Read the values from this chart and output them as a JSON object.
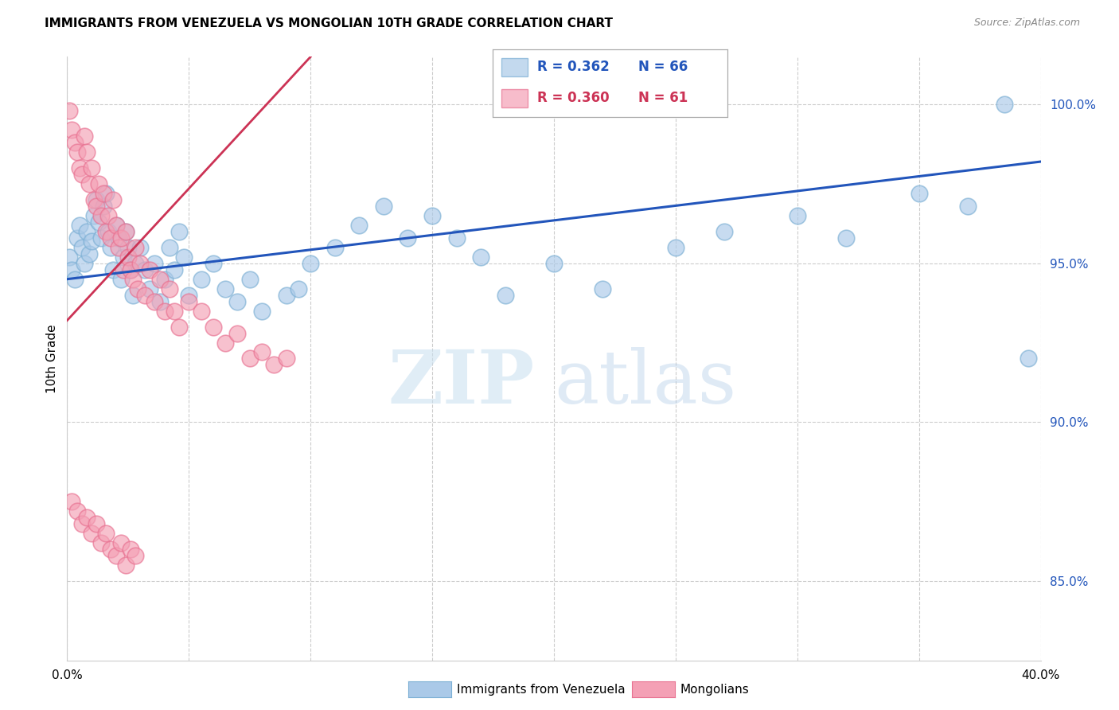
{
  "title": "IMMIGRANTS FROM VENEZUELA VS MONGOLIAN 10TH GRADE CORRELATION CHART",
  "source": "Source: ZipAtlas.com",
  "ylabel": "10th Grade",
  "yaxis_labels": [
    "85.0%",
    "90.0%",
    "95.0%",
    "100.0%"
  ],
  "yaxis_values": [
    0.85,
    0.9,
    0.95,
    1.0
  ],
  "xlim": [
    0.0,
    0.4
  ],
  "ylim": [
    0.825,
    1.015
  ],
  "legend_blue_r": "R = 0.362",
  "legend_blue_n": "N = 66",
  "legend_pink_r": "R = 0.360",
  "legend_pink_n": "N = 61",
  "legend_blue_label": "Immigrants from Venezuela",
  "legend_pink_label": "Mongolians",
  "blue_color": "#aac9e8",
  "pink_color": "#f4a0b5",
  "blue_edge_color": "#7bafd4",
  "pink_edge_color": "#e87090",
  "blue_line_color": "#2255bb",
  "pink_line_color": "#cc3355",
  "watermark_zip": "ZIP",
  "watermark_atlas": "atlas",
  "blue_line_x0": 0.0,
  "blue_line_y0": 0.945,
  "blue_line_x1": 0.4,
  "blue_line_y1": 0.982,
  "pink_line_x0": 0.0,
  "pink_line_y0": 0.932,
  "pink_line_x1": 0.1,
  "pink_line_y1": 1.015,
  "blue_scatter_x": [
    0.001,
    0.002,
    0.003,
    0.004,
    0.005,
    0.006,
    0.007,
    0.008,
    0.009,
    0.01,
    0.011,
    0.012,
    0.013,
    0.014,
    0.015,
    0.016,
    0.017,
    0.018,
    0.019,
    0.02,
    0.021,
    0.022,
    0.023,
    0.024,
    0.025,
    0.026,
    0.027,
    0.028,
    0.03,
    0.032,
    0.034,
    0.036,
    0.038,
    0.04,
    0.042,
    0.044,
    0.046,
    0.048,
    0.05,
    0.055,
    0.06,
    0.065,
    0.07,
    0.075,
    0.08,
    0.09,
    0.095,
    0.1,
    0.11,
    0.12,
    0.13,
    0.14,
    0.15,
    0.16,
    0.17,
    0.18,
    0.2,
    0.22,
    0.25,
    0.27,
    0.3,
    0.32,
    0.35,
    0.37,
    0.385,
    0.395
  ],
  "blue_scatter_y": [
    0.952,
    0.948,
    0.945,
    0.958,
    0.962,
    0.955,
    0.95,
    0.96,
    0.953,
    0.957,
    0.965,
    0.97,
    0.963,
    0.958,
    0.968,
    0.972,
    0.96,
    0.955,
    0.948,
    0.962,
    0.958,
    0.945,
    0.952,
    0.96,
    0.955,
    0.948,
    0.94,
    0.95,
    0.955,
    0.948,
    0.942,
    0.95,
    0.938,
    0.945,
    0.955,
    0.948,
    0.96,
    0.952,
    0.94,
    0.945,
    0.95,
    0.942,
    0.938,
    0.945,
    0.935,
    0.94,
    0.942,
    0.95,
    0.955,
    0.962,
    0.968,
    0.958,
    0.965,
    0.958,
    0.952,
    0.94,
    0.95,
    0.942,
    0.955,
    0.96,
    0.965,
    0.958,
    0.972,
    0.968,
    1.0,
    0.92
  ],
  "pink_scatter_x": [
    0.001,
    0.002,
    0.003,
    0.004,
    0.005,
    0.006,
    0.007,
    0.008,
    0.009,
    0.01,
    0.011,
    0.012,
    0.013,
    0.014,
    0.015,
    0.016,
    0.017,
    0.018,
    0.019,
    0.02,
    0.021,
    0.022,
    0.023,
    0.024,
    0.025,
    0.026,
    0.027,
    0.028,
    0.029,
    0.03,
    0.032,
    0.034,
    0.036,
    0.038,
    0.04,
    0.042,
    0.044,
    0.046,
    0.05,
    0.055,
    0.06,
    0.065,
    0.07,
    0.075,
    0.08,
    0.085,
    0.09,
    0.002,
    0.004,
    0.006,
    0.008,
    0.01,
    0.012,
    0.014,
    0.016,
    0.018,
    0.02,
    0.022,
    0.024,
    0.026,
    0.028
  ],
  "pink_scatter_y": [
    0.998,
    0.992,
    0.988,
    0.985,
    0.98,
    0.978,
    0.99,
    0.985,
    0.975,
    0.98,
    0.97,
    0.968,
    0.975,
    0.965,
    0.972,
    0.96,
    0.965,
    0.958,
    0.97,
    0.962,
    0.955,
    0.958,
    0.948,
    0.96,
    0.952,
    0.948,
    0.945,
    0.955,
    0.942,
    0.95,
    0.94,
    0.948,
    0.938,
    0.945,
    0.935,
    0.942,
    0.935,
    0.93,
    0.938,
    0.935,
    0.93,
    0.925,
    0.928,
    0.92,
    0.922,
    0.918,
    0.92,
    0.875,
    0.872,
    0.868,
    0.87,
    0.865,
    0.868,
    0.862,
    0.865,
    0.86,
    0.858,
    0.862,
    0.855,
    0.86,
    0.858
  ]
}
